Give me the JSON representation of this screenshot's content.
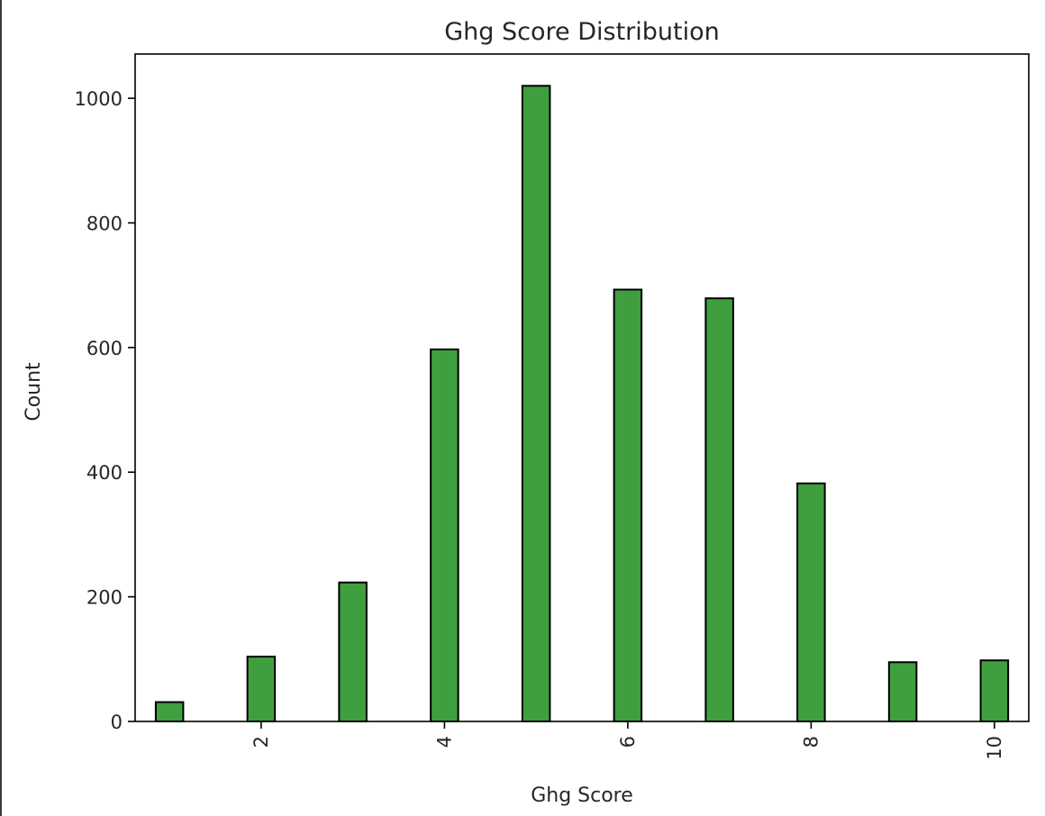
{
  "chart_data": {
    "type": "bar",
    "title": "Ghg Score Distribution",
    "xlabel": "Ghg Score",
    "ylabel": "Count",
    "bar_color": "#3f9f3f",
    "edge_color": "#000000",
    "xlim": [
      0.625,
      10.375
    ],
    "ylim": [
      0,
      1071
    ],
    "xticks": [
      2,
      4,
      6,
      8,
      10
    ],
    "yticks": [
      0,
      200,
      400,
      600,
      800,
      1000
    ],
    "bin_width": 0.3,
    "bars": [
      {
        "x": 1,
        "value": 31
      },
      {
        "x": 2,
        "value": 104
      },
      {
        "x": 3,
        "value": 223
      },
      {
        "x": 4,
        "value": 597
      },
      {
        "x": 5,
        "value": 1020
      },
      {
        "x": 6,
        "value": 693
      },
      {
        "x": 7,
        "value": 679
      },
      {
        "x": 8,
        "value": 382
      },
      {
        "x": 9,
        "value": 95
      },
      {
        "x": 10,
        "value": 98
      }
    ],
    "grid": false,
    "legend": "none"
  }
}
